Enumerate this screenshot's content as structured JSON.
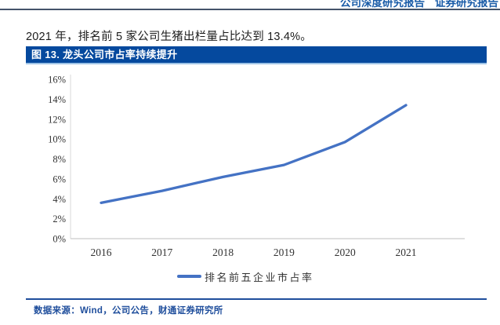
{
  "header": {
    "labels": [
      "公司深度研究报告",
      "证券研究报告"
    ]
  },
  "intro_text": "2021 年，排名前 5 家公司生猪出栏量占比达到 13.4%。",
  "figure": {
    "title": "图 13. 龙头公司市占率持续提升",
    "source": "数据来源：Wind，公司公告，财通证券研究所"
  },
  "colors": {
    "accent_blue": "#05499E",
    "titlebar_underline": "#9DC3E6",
    "header_blue": "#1A5CA8",
    "source_blue": "#1F4E9C",
    "line_blue": "#4472C4",
    "xaxis_gray": "#BFBFBF",
    "yaxis_gray": "#D9D9D9",
    "top_rule": "#44546A"
  },
  "chart_data": {
    "type": "line",
    "title": "龙头公司市占率持续提升",
    "categories": [
      "2016",
      "2017",
      "2018",
      "2019",
      "2020",
      "2021"
    ],
    "series": [
      {
        "name": "排名前五企业市占率",
        "values": [
          3.6,
          4.8,
          6.2,
          7.4,
          9.7,
          13.4
        ]
      }
    ],
    "ylim": [
      0,
      16
    ],
    "ytick_step": 2,
    "ytick_suffix": "%",
    "grid": false,
    "legend_position": "bottom"
  }
}
